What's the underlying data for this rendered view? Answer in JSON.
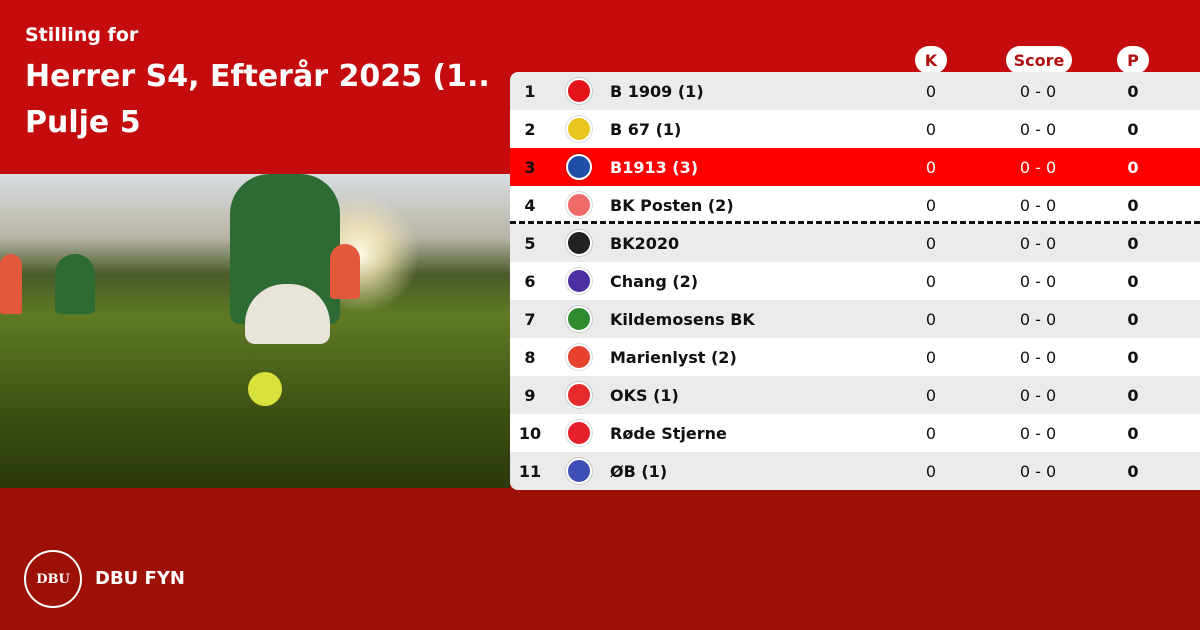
{
  "header": {
    "subtitle": "Stilling for",
    "title": "Herrer S4, Efterår 2025 (1.. Pulje 5"
  },
  "columns": {
    "k": "K",
    "score": "Score",
    "p": "P"
  },
  "highlight_color": "#ff0000",
  "rows": [
    {
      "rank": "1",
      "team": "B 1909 (1)",
      "k": "0",
      "score": "0 - 0",
      "p": "0",
      "logo_color": "#e4141b",
      "highlight": false
    },
    {
      "rank": "2",
      "team": "B 67 (1)",
      "k": "0",
      "score": "0 - 0",
      "p": "0",
      "logo_color": "#e8c620",
      "highlight": false
    },
    {
      "rank": "3",
      "team": "B1913 (3)",
      "k": "0",
      "score": "0 - 0",
      "p": "0",
      "logo_color": "#1f4fa8",
      "highlight": true
    },
    {
      "rank": "4",
      "team": "BK Posten (2)",
      "k": "0",
      "score": "0 - 0",
      "p": "0",
      "logo_color": "#f06a6a",
      "highlight": false
    },
    {
      "rank": "5",
      "team": "BK2020",
      "k": "0",
      "score": "0 - 0",
      "p": "0",
      "logo_color": "#222222",
      "highlight": false
    },
    {
      "rank": "6",
      "team": "Chang  (2)",
      "k": "0",
      "score": "0 - 0",
      "p": "0",
      "logo_color": "#4b2fa3",
      "highlight": false
    },
    {
      "rank": "7",
      "team": "Kildemosens BK",
      "k": "0",
      "score": "0 - 0",
      "p": "0",
      "logo_color": "#2f8a2f",
      "highlight": false
    },
    {
      "rank": "8",
      "team": "Marienlyst (2)",
      "k": "0",
      "score": "0 - 0",
      "p": "0",
      "logo_color": "#e8412e",
      "highlight": false
    },
    {
      "rank": "9",
      "team": "OKS (1)",
      "k": "0",
      "score": "0 - 0",
      "p": "0",
      "logo_color": "#e52b2b",
      "highlight": false
    },
    {
      "rank": "10",
      "team": "Røde Stjerne",
      "k": "0",
      "score": "0 - 0",
      "p": "0",
      "logo_color": "#e5202a",
      "highlight": false
    },
    {
      "rank": "11",
      "team": "ØB (1)",
      "k": "0",
      "score": "0 - 0",
      "p": "0",
      "logo_color": "#3f4fb5",
      "highlight": false
    }
  ],
  "footer": {
    "logo_text": "DBU",
    "brand": "DBU FYN"
  }
}
